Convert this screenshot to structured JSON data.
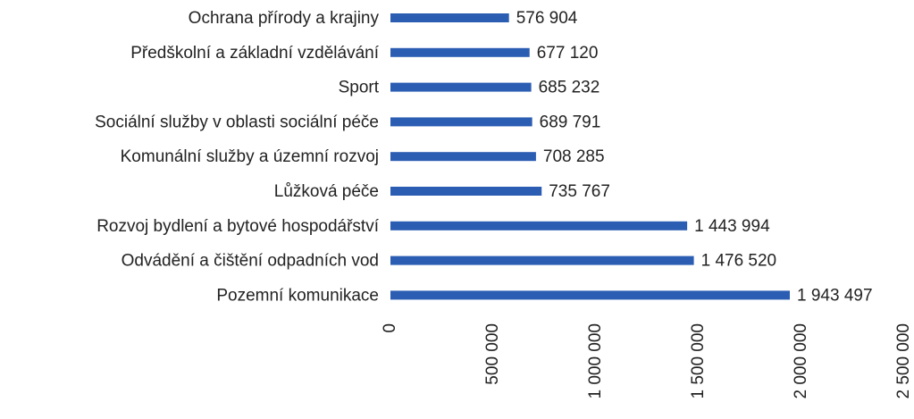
{
  "chart_data": {
    "type": "barh",
    "categories": [
      "Ochrana přírody a krajiny",
      "Předškolní a základní vzdělávání",
      "Sport",
      "Sociální služby v oblasti sociální péče",
      "Komunální služby a územní rozvoj",
      "Lůžková péče",
      "Rozvoj bydlení a bytové hospodářství",
      "Odvádění a čištění odpadních vod",
      "Pozemní komunikace"
    ],
    "values": [
      576904,
      677120,
      685232,
      689791,
      708285,
      735767,
      1443994,
      1476520,
      1943497
    ],
    "value_labels": [
      "576 904",
      "677 120",
      "685 232",
      "689 791",
      "708 285",
      "735 767",
      "1 443 994",
      "1 476 520",
      "1 943 497"
    ],
    "color": "#2b5db3",
    "xlim": [
      0,
      2500000
    ],
    "xticks": [
      0,
      {
        "value": 500000,
        "label": "500 000"
      },
      {
        "value": 1000000,
        "label": "1 000 000"
      },
      {
        "value": 1500000,
        "label": "1 500 000"
      },
      {
        "value": 2000000,
        "label": "2 000 000"
      },
      {
        "value": 2500000,
        "label": "2 500 000"
      }
    ]
  }
}
